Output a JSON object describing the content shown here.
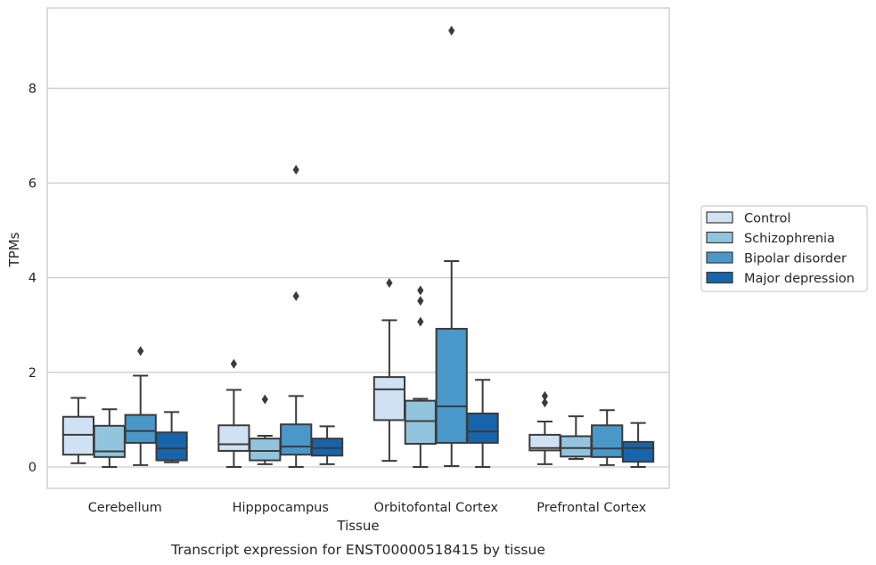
{
  "chart_data": {
    "type": "boxplot",
    "xlabel": "Tissue",
    "ylabel": "TPMs",
    "caption": "Transcript expression for ENST00000518415 by tissue",
    "categories": [
      "Cerebellum",
      "Hipppocampus",
      "Orbitofontal Cortex",
      "Prefrontal Cortex"
    ],
    "ylim": [
      -0.45,
      9.7
    ],
    "yticks": [
      0,
      2,
      4,
      6,
      8
    ],
    "grid": "horizontal",
    "legend_position": "right",
    "series": [
      {
        "name": "Control",
        "color": "#cfe1f2",
        "boxes": [
          {
            "whislo": 0.08,
            "q1": 0.26,
            "med": 0.68,
            "q3": 1.06,
            "whishi": 1.46,
            "fliers": []
          },
          {
            "whislo": 0.0,
            "q1": 0.34,
            "med": 0.48,
            "q3": 0.88,
            "whishi": 1.63,
            "fliers": [
              2.18
            ]
          },
          {
            "whislo": 0.13,
            "q1": 0.99,
            "med": 1.64,
            "q3": 1.9,
            "whishi": 3.1,
            "fliers": [
              3.89
            ]
          },
          {
            "whislo": 0.06,
            "q1": 0.35,
            "med": 0.4,
            "q3": 0.68,
            "whishi": 0.96,
            "fliers": [
              1.36,
              1.5
            ]
          }
        ]
      },
      {
        "name": "Schizophrenia",
        "color": "#93c4de",
        "boxes": [
          {
            "whislo": 0.0,
            "q1": 0.21,
            "med": 0.33,
            "q3": 0.87,
            "whishi": 1.22,
            "fliers": []
          },
          {
            "whislo": 0.06,
            "q1": 0.14,
            "med": 0.34,
            "q3": 0.6,
            "whishi": 0.66,
            "fliers": [
              1.43
            ]
          },
          {
            "whislo": 0.0,
            "q1": 0.49,
            "med": 0.97,
            "q3": 1.4,
            "whishi": 1.44,
            "fliers": [
              3.07,
              3.51,
              3.73
            ]
          },
          {
            "whislo": 0.17,
            "q1": 0.22,
            "med": 0.4,
            "q3": 0.65,
            "whishi": 1.07,
            "fliers": []
          }
        ]
      },
      {
        "name": "Bipolar disorder",
        "color": "#4a98c9",
        "boxes": [
          {
            "whislo": 0.04,
            "q1": 0.51,
            "med": 0.76,
            "q3": 1.1,
            "whishi": 1.93,
            "fliers": [
              2.45
            ]
          },
          {
            "whislo": 0.0,
            "q1": 0.26,
            "med": 0.43,
            "q3": 0.9,
            "whishi": 1.5,
            "fliers": [
              3.61,
              6.28
            ]
          },
          {
            "whislo": 0.02,
            "q1": 0.51,
            "med": 1.28,
            "q3": 2.92,
            "whishi": 4.35,
            "fliers": [
              9.22
            ]
          },
          {
            "whislo": 0.04,
            "q1": 0.21,
            "med": 0.39,
            "q3": 0.88,
            "whishi": 1.2,
            "fliers": []
          }
        ]
      },
      {
        "name": "Major depression",
        "color": "#1764ab",
        "boxes": [
          {
            "whislo": 0.1,
            "q1": 0.14,
            "med": 0.39,
            "q3": 0.73,
            "whishi": 1.16,
            "fliers": []
          },
          {
            "whislo": 0.06,
            "q1": 0.24,
            "med": 0.4,
            "q3": 0.6,
            "whishi": 0.86,
            "fliers": []
          },
          {
            "whislo": 0.0,
            "q1": 0.51,
            "med": 0.75,
            "q3": 1.13,
            "whishi": 1.84,
            "fliers": []
          },
          {
            "whislo": 0.0,
            "q1": 0.11,
            "med": 0.4,
            "q3": 0.53,
            "whishi": 0.93,
            "fliers": []
          }
        ]
      }
    ]
  }
}
